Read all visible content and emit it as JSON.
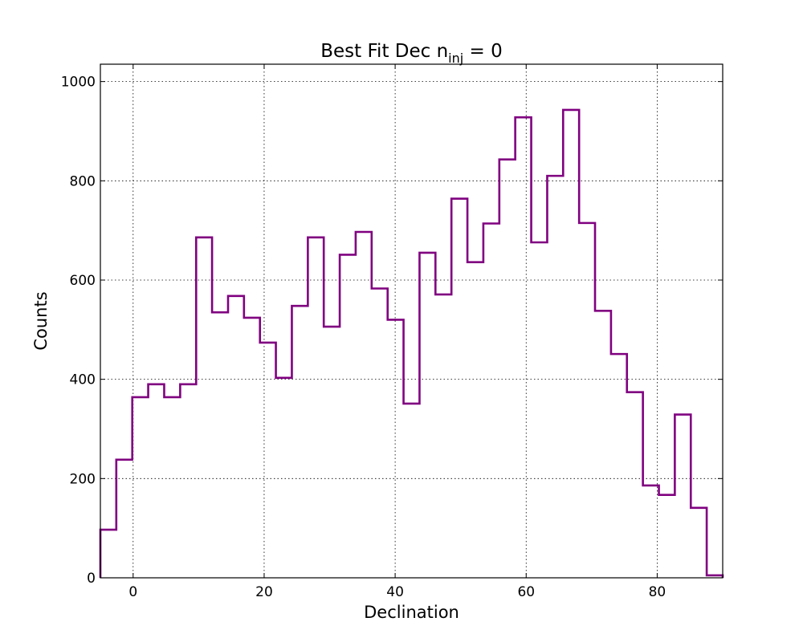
{
  "chart_data": {
    "type": "histogram-step",
    "title": "Best Fit Dec  n",
    "title_subscript": "inj",
    "title_suffix": " = 0",
    "xlabel": "Declination",
    "ylabel": "Counts",
    "xlim": [
      -5,
      90
    ],
    "ylim": [
      0,
      1035
    ],
    "x_ticks": [
      0,
      20,
      40,
      60,
      80
    ],
    "y_ticks": [
      0,
      200,
      400,
      600,
      800,
      1000
    ],
    "grid": true,
    "line_color": "#800080",
    "bin_edges": [
      -5.0,
      -2.57,
      -0.13,
      2.3,
      4.74,
      7.18,
      9.62,
      12.05,
      14.49,
      16.92,
      19.36,
      21.79,
      24.23,
      26.67,
      29.1,
      31.54,
      33.97,
      36.41,
      38.85,
      41.28,
      43.72,
      46.15,
      48.59,
      51.03,
      53.46,
      55.9,
      58.33,
      60.77,
      63.21,
      65.64,
      68.08,
      70.51,
      72.95,
      75.38,
      77.82,
      80.26,
      82.69,
      85.13,
      87.56,
      90.0
    ],
    "counts": [
      97,
      238,
      364,
      390,
      364,
      390,
      686,
      535,
      568,
      524,
      474,
      403,
      548,
      686,
      506,
      651,
      697,
      583,
      520,
      351,
      655,
      571,
      764,
      636,
      714,
      843,
      928,
      676,
      810,
      943,
      715,
      538,
      451,
      374,
      186,
      167,
      329,
      141,
      5
    ]
  }
}
